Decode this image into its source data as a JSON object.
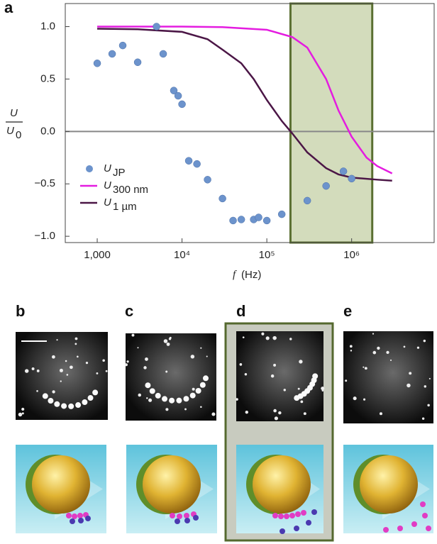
{
  "chart_data": {
    "type": "scatter-line",
    "panel_labels": [
      "a",
      "b",
      "c",
      "d",
      "e"
    ],
    "ylabel": {
      "numerator": "U",
      "denominator": "U",
      "denominator_sub": "0"
    },
    "xlabel": {
      "variable": "f",
      "unit": "(Hz)"
    },
    "log_x": true,
    "xlim": [
      420,
      9400000
    ],
    "ylim": [
      -1.06,
      1.22
    ],
    "xticks": [
      {
        "value": 1000,
        "label": "1,000"
      },
      {
        "value": 10000,
        "label": "10⁴"
      },
      {
        "value": 100000,
        "label": "10⁵"
      },
      {
        "value": 1000000,
        "label": "10⁶"
      }
    ],
    "yticks": [
      {
        "value": 1,
        "label": "1.0"
      },
      {
        "value": 0.5,
        "label": "0.5"
      },
      {
        "value": 0,
        "label": "0.0"
      },
      {
        "value": -0.5,
        "label": "−0.5"
      },
      {
        "value": -1,
        "label": "−1.0"
      }
    ],
    "zero_line": true,
    "band": {
      "x": [
        190000,
        1750000
      ],
      "color": "#d3dcbc",
      "edge_color": "#5b7032"
    },
    "series": [
      {
        "name": "U",
        "name_sub": "JP",
        "kind": "scatter",
        "color": "#6c93cc",
        "x": [
          1000,
          1500,
          2000,
          3000,
          5000,
          6000,
          8000,
          9000,
          10000,
          12000,
          15000,
          20000,
          30000,
          40000,
          50000,
          70000,
          80000,
          100000,
          150000,
          300000,
          500000,
          800000,
          1000000
        ],
        "values": [
          0.65,
          0.74,
          0.82,
          0.66,
          1.0,
          0.74,
          0.39,
          0.34,
          0.26,
          -0.28,
          -0.31,
          -0.46,
          -0.64,
          -0.85,
          -0.84,
          -0.84,
          -0.82,
          -0.85,
          -0.79,
          -0.66,
          -0.52,
          -0.38,
          -0.45
        ]
      },
      {
        "name": "U",
        "name_sub": "300 nm",
        "kind": "line",
        "color": "#e41ce0",
        "x": [
          1000,
          10000,
          30000,
          100000,
          200000,
          300000,
          500000,
          700000,
          1000000,
          1500000,
          2000000,
          3000000
        ],
        "values": [
          1.0,
          1.0,
          0.995,
          0.97,
          0.9,
          0.8,
          0.5,
          0.2,
          -0.05,
          -0.25,
          -0.33,
          -0.4
        ]
      },
      {
        "name": "U",
        "name_sub": "1 µm",
        "kind": "line",
        "color": "#4b1646",
        "x": [
          1000,
          3000,
          10000,
          20000,
          30000,
          50000,
          70000,
          100000,
          150000,
          200000,
          300000,
          500000,
          700000,
          1000000,
          2000000,
          3000000
        ],
        "values": [
          0.98,
          0.975,
          0.95,
          0.88,
          0.78,
          0.65,
          0.5,
          0.3,
          0.1,
          -0.02,
          -0.2,
          -0.35,
          -0.41,
          -0.44,
          -0.46,
          -0.47
        ]
      }
    ]
  }
}
